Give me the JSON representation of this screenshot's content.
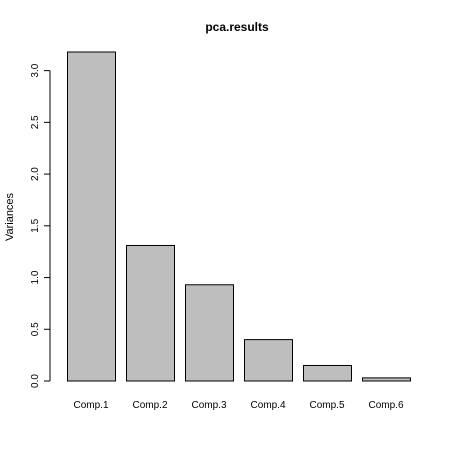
{
  "chart_data": {
    "type": "bar",
    "title": "pca.results",
    "xlabel": "",
    "ylabel": "Variances",
    "categories": [
      "Comp.1",
      "Comp.2",
      "Comp.3",
      "Comp.4",
      "Comp.5",
      "Comp.6"
    ],
    "values": [
      3.18,
      1.31,
      0.93,
      0.4,
      0.15,
      0.03
    ],
    "ylim": [
      0,
      3.18
    ],
    "yticks": [
      "0.0",
      "0.5",
      "1.0",
      "1.5",
      "2.0",
      "2.5",
      "3.0"
    ],
    "grid": false,
    "legend": "none",
    "colors": {
      "bar_fill": "#bebebe",
      "bar_stroke": "#000000",
      "text": "#000000"
    }
  }
}
